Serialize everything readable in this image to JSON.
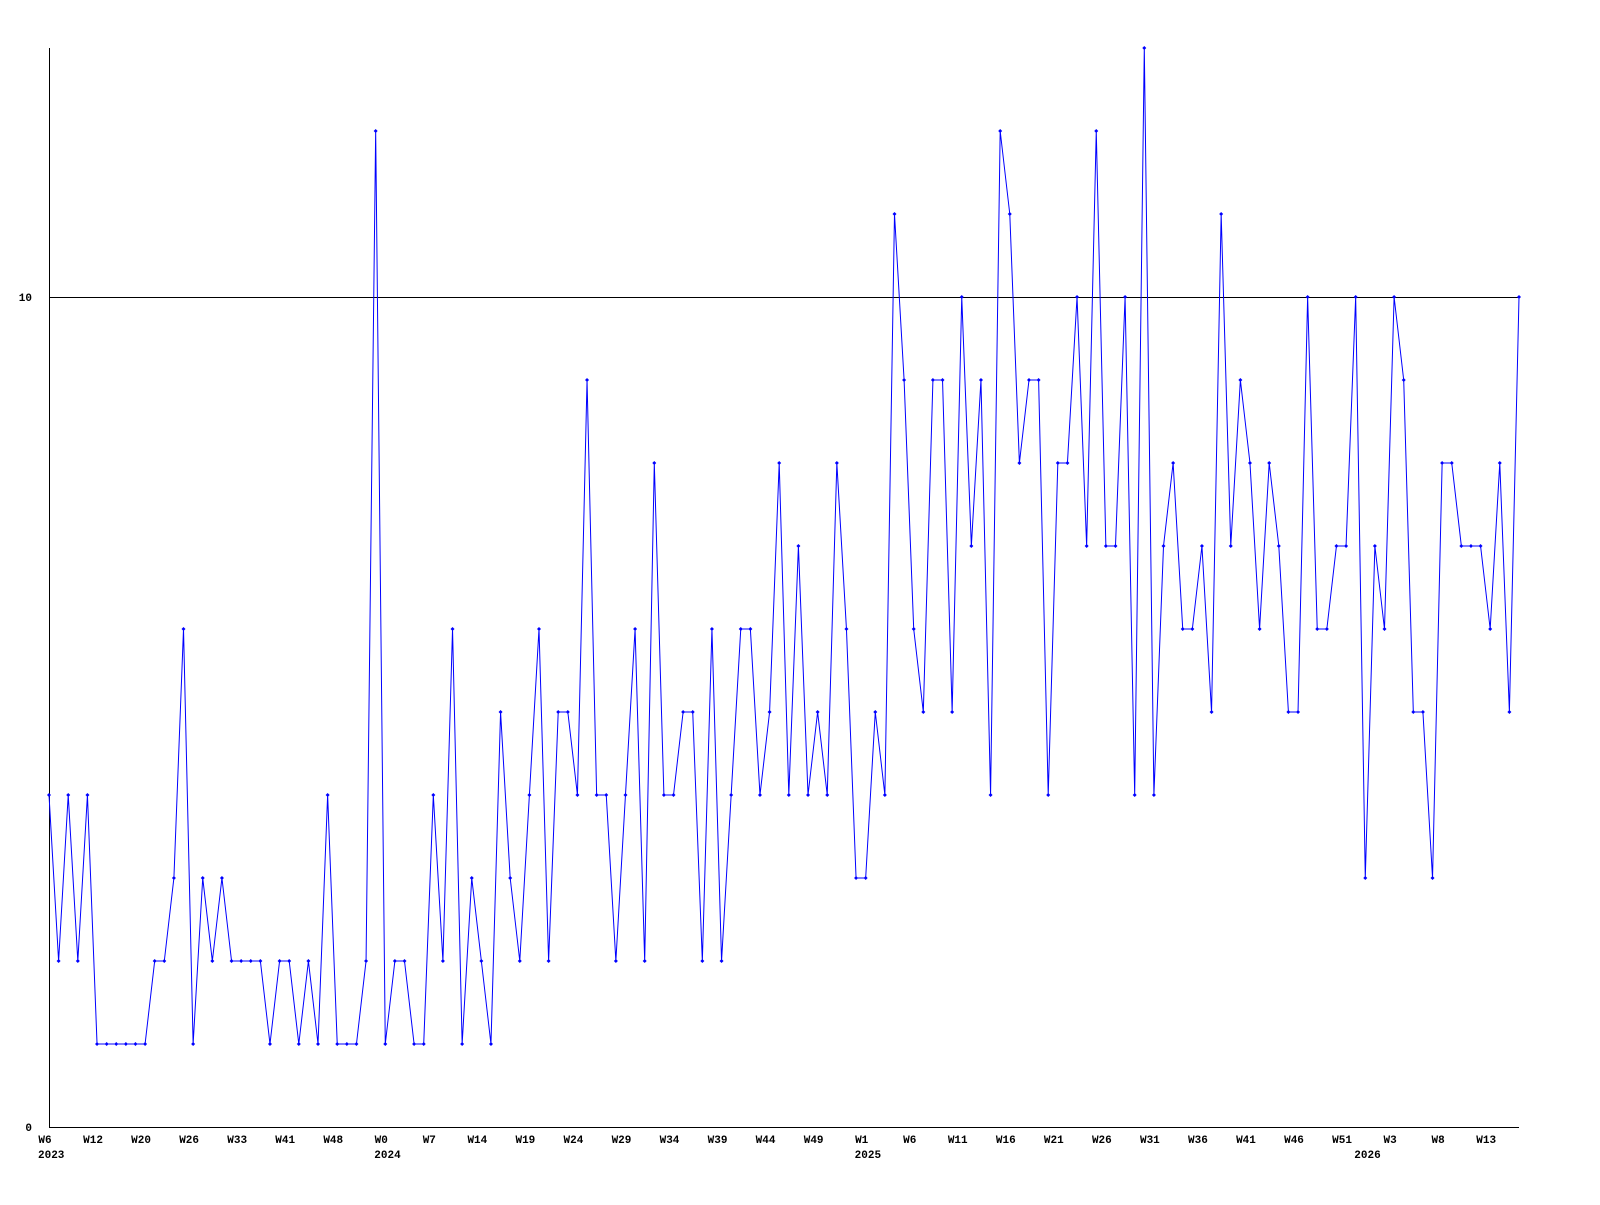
{
  "chart_data": {
    "type": "line",
    "categories": [
      "W6",
      null,
      null,
      null,
      null,
      "W12",
      null,
      null,
      null,
      null,
      "W20",
      null,
      null,
      null,
      null,
      "W26",
      null,
      null,
      null,
      null,
      "W33",
      null,
      null,
      null,
      null,
      "W41",
      null,
      null,
      null,
      null,
      "W48",
      null,
      null,
      null,
      null,
      "W0",
      null,
      null,
      null,
      null,
      "W7",
      null,
      null,
      null,
      null,
      "W14",
      null,
      null,
      null,
      null,
      "W19",
      null,
      null,
      null,
      null,
      "W24",
      null,
      null,
      null,
      null,
      "W29",
      null,
      null,
      null,
      null,
      "W34",
      null,
      null,
      null,
      null,
      "W39",
      null,
      null,
      null,
      null,
      "W44",
      null,
      null,
      null,
      null,
      "W49",
      null,
      null,
      null,
      null,
      "W1",
      null,
      null,
      null,
      null,
      "W6",
      null,
      null,
      null,
      null,
      "W11",
      null,
      null,
      null,
      null,
      "W16",
      null,
      null,
      null,
      null,
      "W21",
      null,
      null,
      null,
      null,
      "W26",
      null,
      null,
      null,
      null,
      "W31",
      null,
      null,
      null,
      null,
      "W36",
      null,
      null,
      null,
      null,
      "W41",
      null,
      null,
      null,
      null,
      "W46",
      null,
      null,
      null,
      null,
      "W51",
      null,
      null,
      null,
      null,
      "W3",
      null,
      null,
      null,
      null,
      "W8",
      null,
      null,
      null,
      null,
      "W13",
      null,
      null,
      null
    ],
    "years": [
      "2023",
      null,
      null,
      null,
      null,
      null,
      null,
      null,
      null,
      null,
      null,
      null,
      null,
      null,
      null,
      null,
      null,
      null,
      null,
      null,
      null,
      null,
      null,
      null,
      null,
      null,
      null,
      null,
      null,
      null,
      null,
      null,
      null,
      null,
      null,
      "2024",
      null,
      null,
      null,
      null,
      null,
      null,
      null,
      null,
      null,
      null,
      null,
      null,
      null,
      null,
      null,
      null,
      null,
      null,
      null,
      null,
      null,
      null,
      null,
      null,
      null,
      null,
      null,
      null,
      null,
      null,
      null,
      null,
      null,
      null,
      null,
      null,
      null,
      null,
      null,
      null,
      null,
      null,
      null,
      null,
      null,
      null,
      null,
      null,
      null,
      "2025",
      null,
      null,
      null,
      null,
      null,
      null,
      null,
      null,
      null,
      null,
      null,
      null,
      null,
      null,
      null,
      null,
      null,
      null,
      null,
      null,
      null,
      null,
      null,
      null,
      null,
      null,
      null,
      null,
      null,
      null,
      null,
      null,
      null,
      null,
      null,
      null,
      null,
      null,
      null,
      null,
      null,
      null,
      null,
      null,
      null,
      null,
      null,
      null,
      null,
      null,
      null,
      "2026",
      null,
      null,
      null,
      null,
      null,
      null,
      null,
      null,
      null,
      null,
      null,
      null,
      null,
      null,
      null,
      null
    ],
    "series": [
      {
        "color": "#0000ff",
        "values": [
          4,
          2,
          4,
          2,
          4,
          1,
          1,
          1,
          1,
          1,
          1,
          2,
          2,
          3,
          6,
          1,
          3,
          2,
          3,
          2,
          2,
          2,
          2,
          1,
          2,
          2,
          1,
          2,
          1,
          4,
          1,
          1,
          1,
          2,
          12,
          1,
          2,
          2,
          1,
          1,
          4,
          2,
          6,
          1,
          3,
          2,
          1,
          5,
          3,
          2,
          4,
          6,
          2,
          5,
          5,
          4,
          9,
          4,
          4,
          2,
          4,
          6,
          2,
          8,
          4,
          4,
          5,
          5,
          2,
          6,
          2,
          4,
          6,
          6,
          4,
          5,
          8,
          4,
          7,
          4,
          5,
          4,
          8,
          6,
          3,
          3,
          5,
          4,
          11,
          9,
          6,
          5,
          9,
          9,
          5,
          10,
          7,
          9,
          4,
          12,
          11,
          8,
          9,
          9,
          4,
          8,
          8,
          10,
          7,
          12,
          7,
          7,
          10,
          4,
          13,
          4,
          7,
          8,
          6,
          6,
          7,
          5,
          11,
          7,
          9,
          8,
          6,
          8,
          7,
          5,
          5,
          10,
          6,
          6,
          7,
          7,
          10,
          3,
          7,
          6,
          10,
          9,
          5,
          5,
          3,
          8,
          8,
          7,
          7,
          7,
          6,
          8,
          5,
          10
        ]
      }
    ],
    "ylim": [
      0,
      13
    ],
    "yticks": [
      0,
      10
    ],
    "grid": true
  }
}
